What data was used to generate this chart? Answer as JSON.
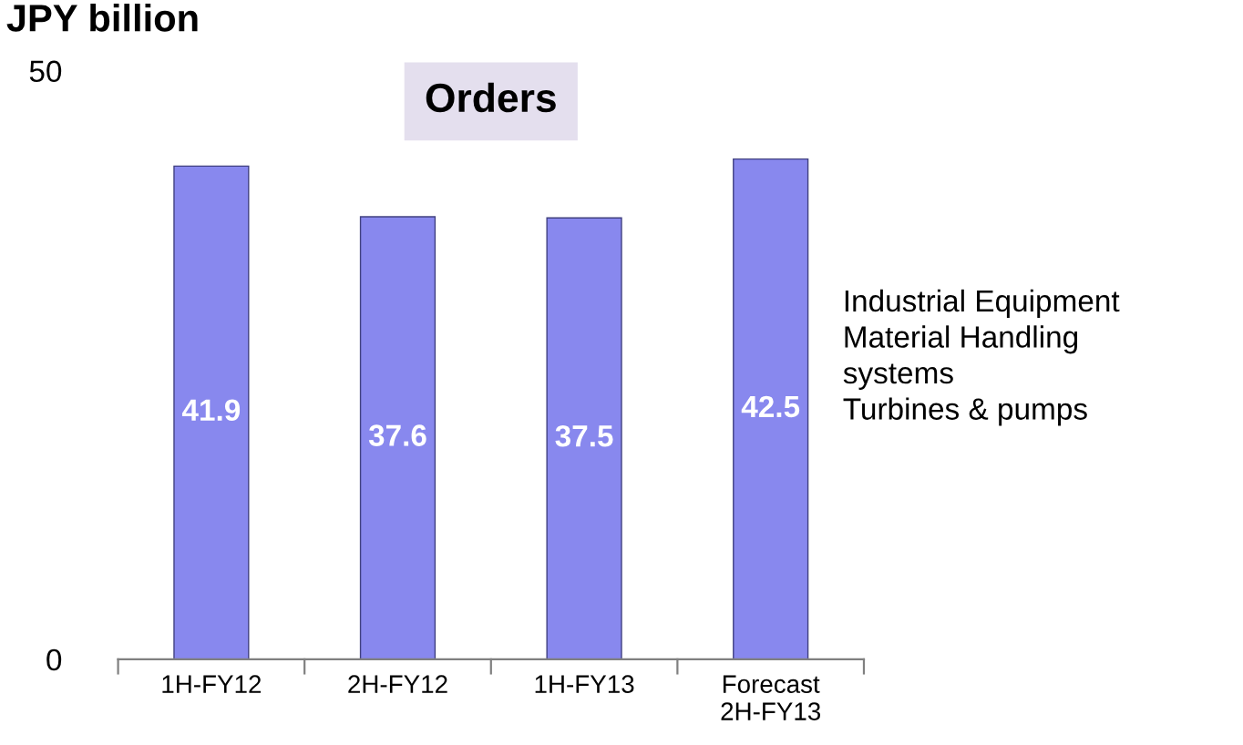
{
  "chart_data": {
    "type": "bar",
    "title": "Orders",
    "ylabel": "JPY billion",
    "categories": [
      "1H-FY12",
      "2H-FY12",
      "1H-FY13",
      "Forecast\n2H-FY13"
    ],
    "values": [
      41.9,
      37.6,
      37.5,
      42.5
    ],
    "color": "#8888ee",
    "ylim": [
      0,
      50
    ],
    "yticks": [
      0,
      50
    ],
    "data_labels": true,
    "grid": false,
    "annotations": [
      "Industrial Equipment\nMaterial Handling\nsystems\nTurbines & pumps"
    ]
  }
}
